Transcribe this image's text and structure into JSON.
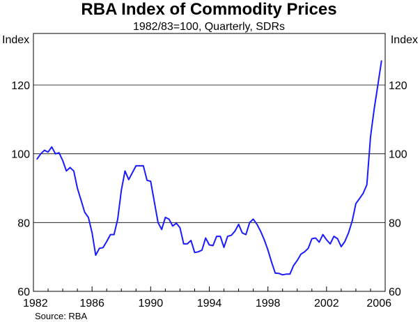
{
  "chart_data": {
    "type": "line",
    "title": "RBA Index of Commodity Prices",
    "subtitle": "1982/83=100, Quarterly, SDRs",
    "ylabel_left": "Index",
    "ylabel_right": "Index",
    "source": "Source: RBA",
    "xlim": [
      1982,
      2006
    ],
    "ylim": [
      60,
      135
    ],
    "y_ticks": [
      60,
      80,
      100,
      120
    ],
    "y_tick_labels": [
      "60",
      "80",
      "100",
      "120"
    ],
    "x_ticks": [
      1982,
      1986,
      1990,
      1994,
      1998,
      2002,
      2006
    ],
    "x_tick_labels": [
      "1982",
      "1986",
      "1990",
      "1994",
      "1998",
      "2002",
      "2006"
    ],
    "gridlines": [
      80,
      100,
      120
    ],
    "line_color": "#1a1aff",
    "series": [
      {
        "name": "RBA Index of Commodity Prices",
        "x": [
          1982.25,
          1982.5,
          1982.75,
          1983.0,
          1983.25,
          1983.5,
          1983.75,
          1984.0,
          1984.25,
          1984.5,
          1984.75,
          1985.0,
          1985.25,
          1985.5,
          1985.75,
          1986.0,
          1986.25,
          1986.5,
          1986.75,
          1987.0,
          1987.25,
          1987.5,
          1987.75,
          1988.0,
          1988.25,
          1988.5,
          1988.75,
          1989.0,
          1989.25,
          1989.5,
          1989.75,
          1990.0,
          1990.25,
          1990.5,
          1990.75,
          1991.0,
          1991.25,
          1991.5,
          1991.75,
          1992.0,
          1992.25,
          1992.5,
          1992.75,
          1993.0,
          1993.25,
          1993.5,
          1993.75,
          1994.0,
          1994.25,
          1994.5,
          1994.75,
          1995.0,
          1995.25,
          1995.5,
          1995.75,
          1996.0,
          1996.25,
          1996.5,
          1996.75,
          1997.0,
          1997.25,
          1997.5,
          1997.75,
          1998.0,
          1998.25,
          1998.5,
          1998.75,
          1999.0,
          1999.25,
          1999.5,
          1999.75,
          2000.0,
          2000.25,
          2000.5,
          2000.75,
          2001.0,
          2001.25,
          2001.5,
          2001.75,
          2002.0,
          2002.25,
          2002.5,
          2002.75,
          2003.0,
          2003.25,
          2003.5,
          2003.75,
          2004.0,
          2004.25,
          2004.5,
          2004.75,
          2005.0,
          2005.25,
          2005.5,
          2005.75
        ],
        "values": [
          98.5,
          100.0,
          101.0,
          100.5,
          102.0,
          100.0,
          100.3,
          98.0,
          95.0,
          96.0,
          95.0,
          90.0,
          86.5,
          83.0,
          81.5,
          77.0,
          70.5,
          72.5,
          72.7,
          74.5,
          76.5,
          76.5,
          81.0,
          89.5,
          95.0,
          92.5,
          94.5,
          96.5,
          96.5,
          96.5,
          92.3,
          92.0,
          86.0,
          80.0,
          78.0,
          81.5,
          81.0,
          79.0,
          79.8,
          78.5,
          73.8,
          73.8,
          74.8,
          71.3,
          71.5,
          72.0,
          75.5,
          73.5,
          73.3,
          76.0,
          76.0,
          72.8,
          76.0,
          76.3,
          77.5,
          79.5,
          77.0,
          76.5,
          80.0,
          81.0,
          79.5,
          77.5,
          75.0,
          72.0,
          68.5,
          65.3,
          65.2,
          64.8,
          65.0,
          65.0,
          67.5,
          69.0,
          70.8,
          71.5,
          72.5,
          75.3,
          75.5,
          74.3,
          76.5,
          75.0,
          73.8,
          76.0,
          75.3,
          73.0,
          74.5,
          77.0,
          80.5,
          85.5,
          87.0,
          88.5,
          91.0,
          105.0,
          113.0,
          120.0,
          127.0
        ]
      }
    ]
  }
}
